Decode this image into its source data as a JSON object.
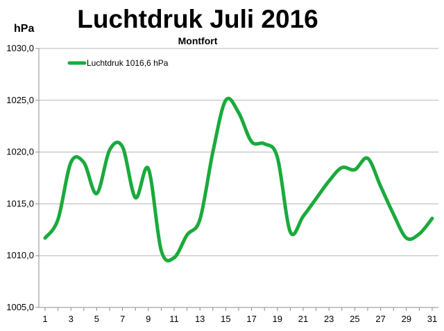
{
  "chart_data": {
    "type": "line",
    "title": "Luchtdruk Juli 2016",
    "subtitle": "Montfort",
    "ylabel": "hPa",
    "xlabel": "",
    "ylim": [
      1005,
      1030
    ],
    "yticks": [
      1005,
      1010,
      1015,
      1020,
      1025,
      1030
    ],
    "ytick_labels": [
      "1005,0",
      "1010,0",
      "1015,0",
      "1020,0",
      "1025,0",
      "1030,0"
    ],
    "xlim": [
      1,
      31
    ],
    "xticks": [
      1,
      3,
      5,
      7,
      9,
      11,
      13,
      15,
      17,
      19,
      21,
      23,
      25,
      27,
      29,
      31
    ],
    "xtick_labels": [
      "1",
      "3",
      "5",
      "7",
      "9",
      "11",
      "13",
      "15",
      "17",
      "19",
      "21",
      "23",
      "25",
      "27",
      "29",
      "31"
    ],
    "grid": true,
    "legend_position": "top-left",
    "series": [
      {
        "name": "Luchtdruk 1016,6 hPa",
        "color": "#1aaa3c",
        "x": [
          1,
          2,
          3,
          4,
          5,
          6,
          7,
          8,
          9,
          10,
          11,
          12,
          13,
          14,
          15,
          16,
          17,
          18,
          19,
          20,
          21,
          22,
          23,
          24,
          25,
          26,
          27,
          28,
          29,
          30,
          31
        ],
        "values": [
          1011.7,
          1013.5,
          1019.0,
          1019.0,
          1016.0,
          1020.2,
          1020.5,
          1015.6,
          1018.4,
          1010.5,
          1009.8,
          1012.0,
          1013.5,
          1020.0,
          1025.0,
          1023.8,
          1021.0,
          1020.8,
          1019.5,
          1012.3,
          1013.8,
          1015.5,
          1017.2,
          1018.5,
          1018.3,
          1019.4,
          1016.7,
          1014.0,
          1011.7,
          1012.1,
          1013.6
        ]
      }
    ]
  }
}
